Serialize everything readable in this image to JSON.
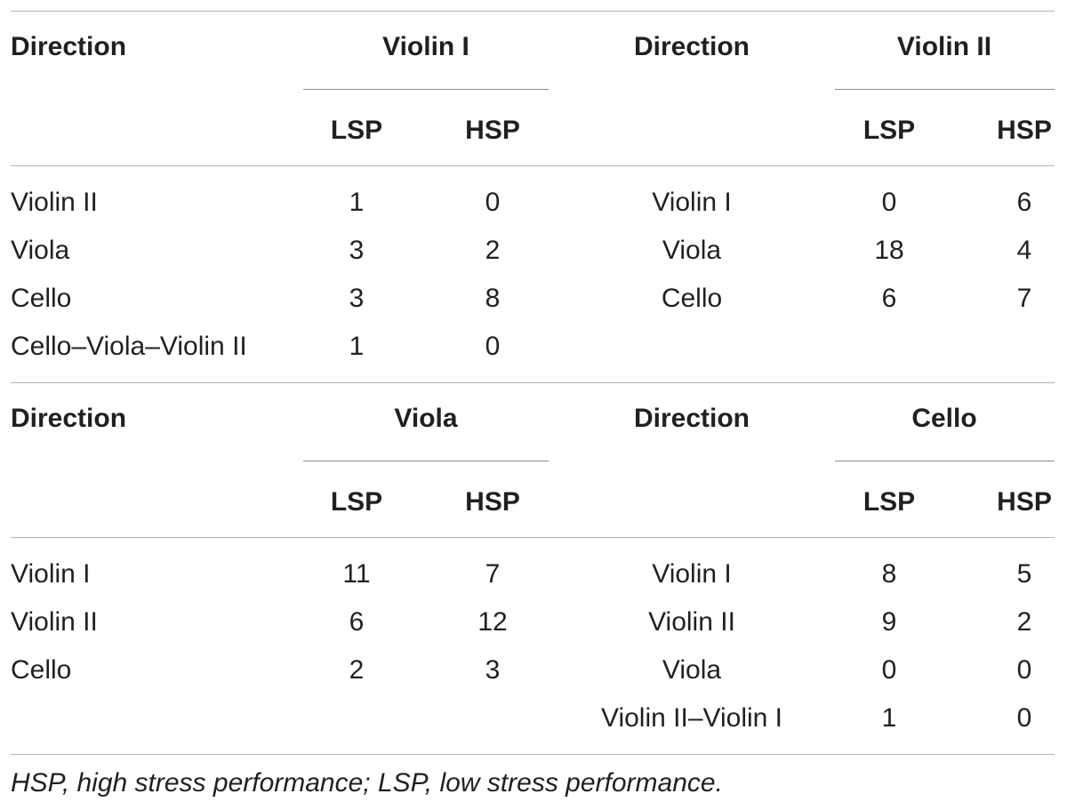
{
  "blocks": [
    {
      "left": {
        "direction_header": "Direction",
        "instrument": "Violin I",
        "col_lsp": "LSP",
        "col_hsp": "HSP",
        "rows": [
          {
            "direction": "Violin II",
            "lsp": "1",
            "hsp": "0"
          },
          {
            "direction": "Viola",
            "lsp": "3",
            "hsp": "2"
          },
          {
            "direction": "Cello",
            "lsp": "3",
            "hsp": "8"
          },
          {
            "direction": "Cello–Viola–Violin II",
            "lsp": "1",
            "hsp": "0"
          }
        ]
      },
      "right": {
        "direction_header": "Direction",
        "instrument": "Violin II",
        "col_lsp": "LSP",
        "col_hsp": "HSP",
        "rows": [
          {
            "direction": "Violin I",
            "lsp": "0",
            "hsp": "6"
          },
          {
            "direction": "Viola",
            "lsp": "18",
            "hsp": "4"
          },
          {
            "direction": "Cello",
            "lsp": "6",
            "hsp": "7"
          }
        ]
      }
    },
    {
      "left": {
        "direction_header": "Direction",
        "instrument": "Viola",
        "col_lsp": "LSP",
        "col_hsp": "HSP",
        "rows": [
          {
            "direction": "Violin I",
            "lsp": "11",
            "hsp": "7"
          },
          {
            "direction": "Violin II",
            "lsp": "6",
            "hsp": "12"
          },
          {
            "direction": "Cello",
            "lsp": "2",
            "hsp": "3"
          }
        ]
      },
      "right": {
        "direction_header": "Direction",
        "instrument": "Cello",
        "col_lsp": "LSP",
        "col_hsp": "HSP",
        "rows": [
          {
            "direction": "Violin I",
            "lsp": "8",
            "hsp": "5"
          },
          {
            "direction": "Violin II",
            "lsp": "9",
            "hsp": "2"
          },
          {
            "direction": "Viola",
            "lsp": "0",
            "hsp": "0"
          },
          {
            "direction": "Violin II–Violin I",
            "lsp": "1",
            "hsp": "0"
          }
        ]
      }
    }
  ],
  "footnote": "HSP, high stress performance; LSP, low stress performance."
}
